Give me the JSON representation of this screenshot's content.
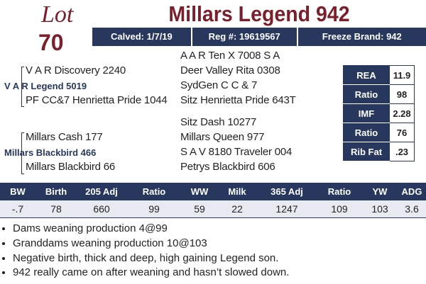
{
  "lot": {
    "label": "Lot",
    "number": "70"
  },
  "title": "Millars Legend 942",
  "info": [
    "Calved: 1/7/19",
    "Reg #: 19619567",
    "Freeze Brand: 942"
  ],
  "pedigree": {
    "sire": "V A R Legend 5019",
    "sire_sire": "V A R Discovery 2240",
    "sire_dam": "PF CC&7 Henrietta Pride 1044",
    "sire_sire_sire": "A A R Ten X 7008 S A",
    "sire_sire_dam": "Deer Valley Rita 0308",
    "sire_dam_sire": "SydGen C C & 7",
    "sire_dam_dam": "Sitz Henrietta Pride 643T",
    "dam": "Millars Blackbird 466",
    "dam_sire": "Millars Cash 177",
    "dam_dam": "Millars Blackbird 66",
    "dam_sire_sire": "Sitz Dash 10277",
    "dam_sire_dam": "Millars Queen 977",
    "dam_dam_sire": "S A V 8180 Traveler 004",
    "dam_dam_dam": "Petrys Blackbird 606"
  },
  "carcass": {
    "rows": [
      [
        "REA",
        "11.9"
      ],
      [
        "Ratio",
        "98"
      ],
      [
        "IMF",
        "2.28"
      ],
      [
        "Ratio",
        "76"
      ],
      [
        "Rib Fat",
        ".23"
      ]
    ]
  },
  "performance": {
    "headers": [
      "BW",
      "Birth",
      "205 Adj",
      "Ratio",
      "WW",
      "Milk",
      "365 Adj",
      "Ratio",
      "YW",
      "ADG"
    ],
    "values": [
      "-.7",
      "78",
      "660",
      "99",
      "59",
      "22",
      "1247",
      "109",
      "103",
      "3.6"
    ]
  },
  "notes": [
    "Dams weaning production 4@99",
    "Granddams weaning production 10@103",
    "Negative birth, thick and deep, high gaining Legend son.",
    "942 really came on after weaning and hasn’t slowed down."
  ]
}
